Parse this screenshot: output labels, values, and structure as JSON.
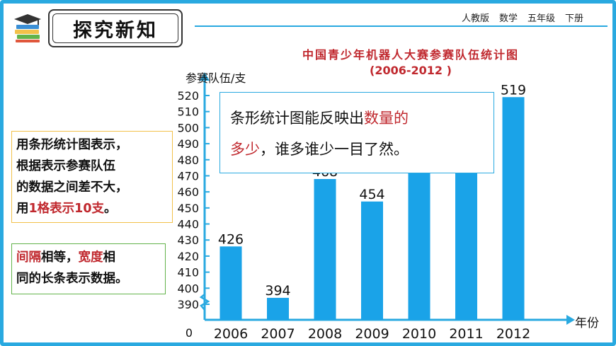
{
  "header": {
    "section_title": "探究新知",
    "breadcrumbs": [
      "人教版",
      "数学",
      "五年级",
      "下册"
    ]
  },
  "notes": {
    "note1_lines": [
      "用条形统计图表示，",
      "根据表示参赛队伍",
      "的数据之间差不大，"
    ],
    "note1_last_prefix": "用",
    "note1_last_highlight": "1格表示10支",
    "note1_last_suffix": "。",
    "note2_h1": "间隔",
    "note2_t1": "相等，",
    "note2_h2": "宽度",
    "note2_t2": "相",
    "note2_line2": "同的长条表示数据。"
  },
  "callout": {
    "part1": "条形统计图能反映出",
    "highlight1": "数量的",
    "highlight2": "多少",
    "part2": "，谁多谁少一目了然。"
  },
  "colors": {
    "bar": "#1aa3e8",
    "accent": "#29a9e0",
    "highlight": "#c0282e"
  },
  "chart_data": {
    "type": "bar",
    "title": "中国青少年机器人大赛参赛队伍统计图",
    "subtitle": "(2006-2012 )",
    "ylabel": "参赛队伍/支",
    "xlabel": "年份",
    "origin_label": "0",
    "categories": [
      "2006",
      "2007",
      "2008",
      "2009",
      "2010",
      "2011",
      "2012"
    ],
    "values": [
      426,
      394,
      468,
      454,
      495,
      500,
      519
    ],
    "data_labels": [
      "426",
      "394",
      "468",
      "454",
      "",
      "",
      "519"
    ],
    "ylim": [
      390,
      520
    ],
    "yticks": [
      390,
      400,
      410,
      420,
      430,
      440,
      450,
      460,
      470,
      480,
      490,
      500,
      510,
      520
    ],
    "axis_break": true,
    "grid": false
  }
}
